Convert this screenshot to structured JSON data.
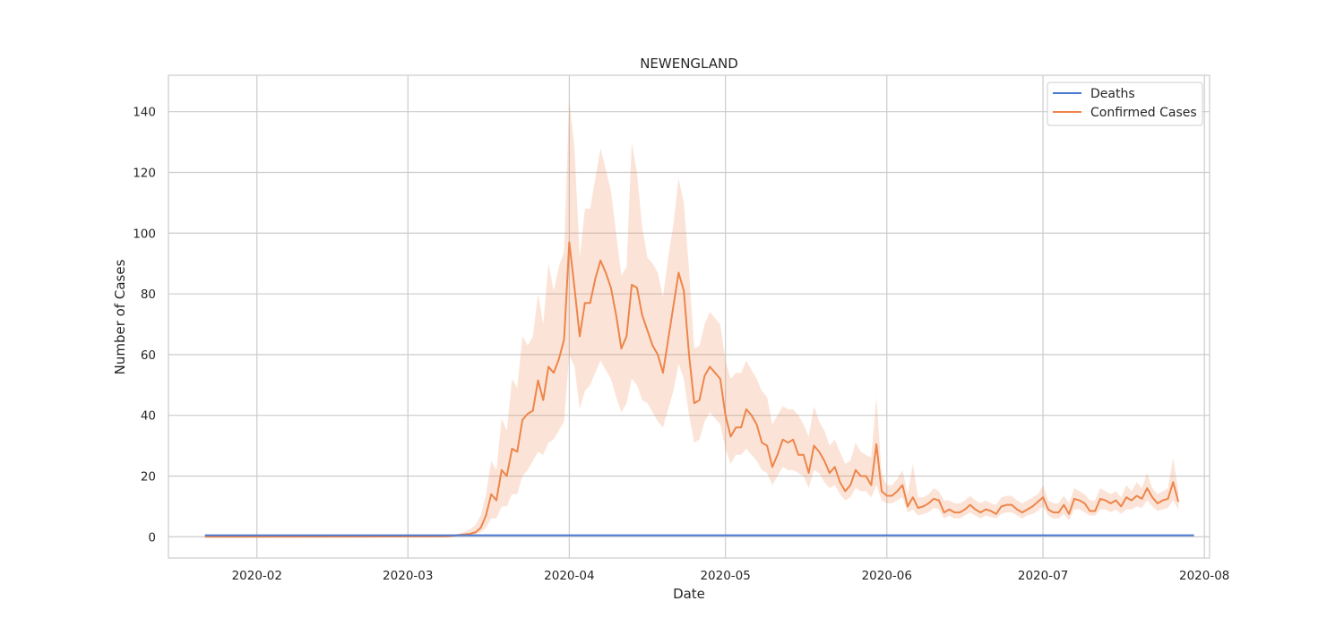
{
  "chart_data": {
    "type": "line",
    "title": "NEWENGLAND",
    "xlabel": "Date",
    "ylabel": "Number of Cases",
    "xlim": [
      "2020-01-15",
      "2020-08-02"
    ],
    "ylim": [
      -7,
      152
    ],
    "xticks": [
      "2020-02",
      "2020-03",
      "2020-04",
      "2020-05",
      "2020-06",
      "2020-07",
      "2020-08"
    ],
    "yticks": [
      0,
      20,
      40,
      60,
      80,
      100,
      120,
      140
    ],
    "grid": true,
    "legend": "top-right",
    "colors": {
      "deaths": "#4878d0",
      "confirmed": "#ee854a",
      "band": "#ee854a"
    },
    "series": [
      {
        "name": "Deaths",
        "start": "2020-01-22",
        "end": "2020-07-30",
        "values": [
          0.5
        ]
      },
      {
        "name": "Confirmed Cases",
        "start": "2020-03-08",
        "step_days": 1,
        "values": [
          0.1,
          0.2,
          0.4,
          0.6,
          0.8,
          1,
          1.5,
          3,
          7,
          14,
          12,
          22,
          20,
          29,
          28,
          38.5,
          40.5,
          41.5,
          51.5,
          45,
          56,
          54,
          58.5,
          65,
          97,
          82,
          66,
          77,
          77,
          85,
          91,
          87,
          82,
          73,
          62,
          66,
          83,
          82,
          73,
          68,
          63,
          60,
          54,
          65,
          76,
          87,
          81,
          60,
          44,
          45,
          53,
          56,
          54,
          52,
          40,
          33,
          36,
          36,
          42,
          40,
          37,
          31,
          30,
          23,
          27,
          32,
          31,
          32,
          27,
          27,
          21,
          30,
          28,
          25,
          21,
          23,
          18,
          15,
          17,
          22,
          20,
          20,
          17,
          30.5,
          15,
          13.5,
          13.5,
          15,
          17,
          10,
          13,
          9.5,
          10,
          11,
          12.5,
          12,
          8,
          9,
          8,
          8,
          9,
          10.5,
          9,
          8,
          9,
          8.5,
          7.5,
          10,
          10.5,
          10.5,
          9,
          8,
          9,
          10,
          11.5,
          13,
          9,
          8,
          8,
          10.5,
          7.5,
          12.5,
          12,
          11,
          8.5,
          8.5,
          12.5,
          12,
          11,
          12,
          10,
          13,
          12,
          13.5,
          12.5,
          16,
          13,
          11,
          12,
          12.5,
          18,
          11.5
        ],
        "band_upper": [
          0.3,
          0.5,
          0.8,
          1.2,
          1.7,
          2.5,
          4,
          7,
          14,
          25,
          22,
          39,
          35,
          52,
          49,
          66,
          63,
          66,
          80,
          70,
          90,
          81,
          89,
          94,
          144,
          128,
          92,
          108,
          108,
          118,
          128,
          121,
          114,
          100,
          86,
          89,
          130,
          120,
          102,
          92,
          90,
          87,
          79,
          92,
          103,
          118,
          110,
          88,
          62,
          63,
          70,
          74,
          72,
          70,
          58,
          52,
          54,
          54,
          58,
          55,
          52,
          48,
          46,
          37,
          40,
          43,
          42,
          42,
          40,
          37,
          33,
          43,
          38,
          35,
          30,
          32,
          28,
          24,
          25,
          31,
          28,
          27,
          26,
          46,
          21,
          17,
          17,
          19,
          22,
          14,
          24,
          13,
          13,
          14,
          16,
          15,
          12,
          12,
          11,
          11,
          12,
          13.5,
          12,
          11,
          12,
          11,
          10.5,
          13,
          13.5,
          13.5,
          12,
          11,
          12,
          13,
          14,
          17,
          12,
          11,
          11,
          13.5,
          11,
          16,
          15,
          14,
          12,
          12,
          16,
          15,
          14,
          15,
          13,
          17,
          15,
          18,
          16,
          21,
          16,
          14,
          15,
          16,
          26,
          15
        ],
        "band_lower": [
          0,
          0,
          0.1,
          0.2,
          0.4,
          0.6,
          0.8,
          1.5,
          3,
          6,
          6,
          10,
          10,
          14,
          14,
          20,
          22,
          25,
          28,
          27,
          31,
          32,
          35,
          38,
          60,
          56,
          42,
          48,
          50,
          54,
          58,
          55,
          52,
          46,
          41,
          44,
          52,
          50,
          45,
          44,
          41,
          38,
          36,
          42,
          48,
          57,
          52,
          40,
          31,
          32,
          38,
          41,
          39,
          37,
          29,
          24,
          27,
          27,
          29,
          27,
          25,
          22,
          21,
          17,
          20,
          23,
          22,
          22,
          21,
          20,
          16,
          22,
          21,
          18,
          16,
          17,
          14,
          12,
          13,
          16,
          15,
          15,
          13,
          17,
          12,
          11,
          11,
          12,
          13,
          8,
          9,
          7,
          7.5,
          8,
          9.5,
          9,
          6,
          7,
          6,
          6,
          7,
          8,
          7,
          6,
          7,
          6.5,
          6,
          7.5,
          8,
          8,
          7,
          6,
          7,
          7.5,
          8.5,
          10,
          7,
          6,
          6,
          7.5,
          5.5,
          9,
          9,
          8,
          7,
          7,
          9,
          9,
          8,
          9,
          7.5,
          9,
          9,
          10,
          9.5,
          12,
          10,
          8.5,
          9,
          9.5,
          12,
          9
        ]
      }
    ]
  }
}
